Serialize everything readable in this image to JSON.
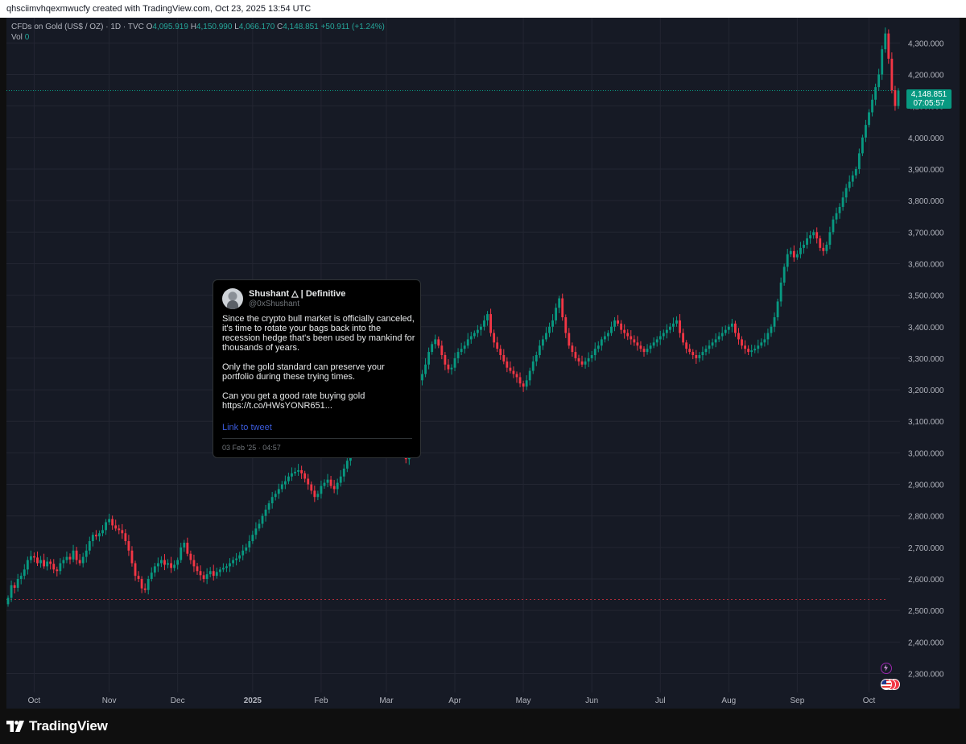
{
  "header": {
    "attribution": "qhsciimvhqexmwucfy created with TradingView.com, Oct 23, 2025 13:54 UTC"
  },
  "legend": {
    "symbol": "CFDs on Gold (US$ / OZ) · 1D · TVC",
    "o_label": "O",
    "o_value": "4,095.919",
    "h_label": "H",
    "h_value": "4,150.990",
    "l_label": "L",
    "l_value": "4,066.170",
    "c_label": "C",
    "c_value": "4,148.851",
    "change": "+50.911 (+1.24%)",
    "vol_label": "Vol",
    "vol_value": "0"
  },
  "price_tag": {
    "price": "4,148.851",
    "countdown": "07:05:57"
  },
  "tweet": {
    "name": "Shushant △ | Definitive",
    "handle": "@0xShushant",
    "text": "Since the crypto bull market is officially canceled, it's time to rotate your bags back into the recession hedge that's been used by mankind for thousands of years.\n\nOnly the gold standard can preserve your portfolio during these trying times.\n\nCan you get a good rate buying gold https://t.co/HWsYONR651...",
    "link_label": "Link to tweet",
    "date": "03 Feb '25 · 04:57"
  },
  "footer": {
    "brand": "TradingView"
  },
  "colors": {
    "up": "#089981",
    "down": "#f23645",
    "background": "#161a25",
    "grid": "#232632",
    "axis_text": "#b2b5be"
  },
  "icons": [
    "tradingview-logo-icon",
    "lightning-icon",
    "us-flag-event-icon"
  ],
  "chart_data": {
    "type": "candlestick",
    "title": "CFDs on Gold (US$ / OZ) · 1D · TVC",
    "y_ticks": [
      "2,300.000",
      "2,400.000",
      "2,500.000",
      "2,600.000",
      "2,700.000",
      "2,800.000",
      "2,900.000",
      "3,000.000",
      "3,100.000",
      "3,200.000",
      "3,300.000",
      "3,400.000",
      "3,500.000",
      "3,600.000",
      "3,700.000",
      "3,800.000",
      "3,900.000",
      "4,000.000",
      "4,100.000",
      "4,200.000",
      "4,300.000"
    ],
    "y_tick_values": [
      2300,
      2400,
      2500,
      2600,
      2700,
      2800,
      2900,
      3000,
      3100,
      3200,
      3300,
      3400,
      3500,
      3600,
      3700,
      3800,
      3900,
      4000,
      4100,
      4200,
      4300
    ],
    "ylim": [
      2240,
      4380
    ],
    "x_ticks": [
      "Oct",
      "Nov",
      "Dec",
      "2025",
      "Feb",
      "Mar",
      "Apr",
      "May",
      "Jun",
      "Jul",
      "Aug",
      "Sep",
      "Oct"
    ],
    "x_tick_index": [
      8,
      31,
      52,
      75,
      96,
      116,
      137,
      158,
      179,
      200,
      221,
      242,
      264
    ],
    "last_close": 4148.851,
    "reference_line": 2535,
    "closes": [
      2540,
      2580,
      2572,
      2600,
      2610,
      2630,
      2660,
      2672,
      2668,
      2650,
      2660,
      2640,
      2655,
      2648,
      2630,
      2625,
      2650,
      2660,
      2670,
      2662,
      2690,
      2660,
      2650,
      2670,
      2690,
      2720,
      2740,
      2735,
      2745,
      2755,
      2780,
      2790,
      2770,
      2760,
      2755,
      2745,
      2720,
      2690,
      2650,
      2610,
      2600,
      2570,
      2565,
      2600,
      2620,
      2640,
      2650,
      2660,
      2645,
      2650,
      2635,
      2645,
      2660,
      2700,
      2715,
      2680,
      2660,
      2640,
      2625,
      2612,
      2600,
      2615,
      2625,
      2610,
      2622,
      2630,
      2635,
      2640,
      2650,
      2660,
      2665,
      2675,
      2690,
      2700,
      2720,
      2740,
      2760,
      2775,
      2800,
      2820,
      2840,
      2860,
      2870,
      2885,
      2900,
      2910,
      2925,
      2935,
      2940,
      2945,
      2935,
      2918,
      2900,
      2880,
      2860,
      2870,
      2895,
      2905,
      2915,
      2895,
      2885,
      2905,
      2925,
      2950,
      2975,
      3000,
      3010,
      3020,
      3030,
      3035,
      3040,
      3045,
      3050,
      3060,
      3075,
      3100,
      3120,
      3135,
      3140,
      3125,
      3080,
      3020,
      2980,
      3050,
      3120,
      3180,
      3230,
      3250,
      3280,
      3320,
      3345,
      3360,
      3340,
      3310,
      3280,
      3265,
      3270,
      3300,
      3320,
      3330,
      3340,
      3360,
      3370,
      3380,
      3390,
      3400,
      3420,
      3440,
      3380,
      3350,
      3330,
      3310,
      3290,
      3270,
      3260,
      3250,
      3240,
      3220,
      3210,
      3230,
      3260,
      3290,
      3310,
      3340,
      3360,
      3380,
      3400,
      3420,
      3460,
      3490,
      3430,
      3380,
      3340,
      3320,
      3300,
      3290,
      3280,
      3290,
      3300,
      3310,
      3330,
      3340,
      3360,
      3370,
      3380,
      3400,
      3420,
      3410,
      3390,
      3380,
      3370,
      3360,
      3350,
      3340,
      3330,
      3320,
      3330,
      3340,
      3350,
      3360,
      3370,
      3380,
      3390,
      3400,
      3410,
      3420,
      3380,
      3350,
      3330,
      3320,
      3310,
      3300,
      3310,
      3320,
      3330,
      3340,
      3350,
      3360,
      3370,
      3380,
      3390,
      3400,
      3410,
      3380,
      3360,
      3340,
      3330,
      3320,
      3325,
      3330,
      3340,
      3350,
      3360,
      3380,
      3400,
      3430,
      3480,
      3540,
      3590,
      3630,
      3640,
      3620,
      3630,
      3650,
      3660,
      3680,
      3690,
      3700,
      3680,
      3650,
      3640,
      3660,
      3700,
      3740,
      3760,
      3780,
      3810,
      3840,
      3860,
      3880,
      3900,
      3950,
      4000,
      4040,
      4080,
      4120,
      4160,
      4200,
      4280,
      4330,
      4250,
      4150,
      4100,
      4148.851
    ],
    "xlabel": "",
    "ylabel": ""
  }
}
